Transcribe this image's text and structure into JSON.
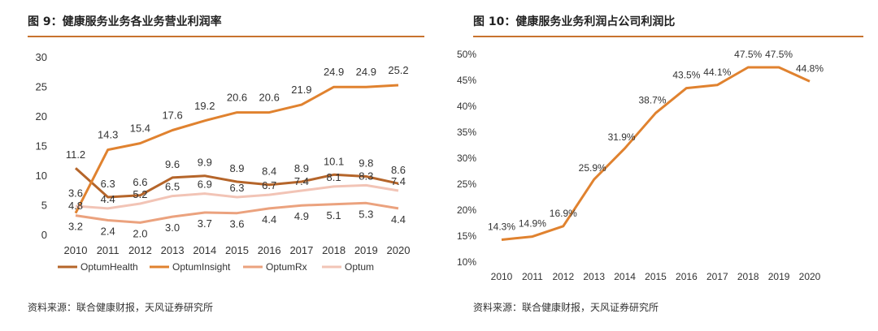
{
  "left": {
    "title": "图 9：健康服务业务各业务营业利润率",
    "source": "资料来源：联合健康财报，天风证券研究所",
    "chart_data": {
      "type": "line",
      "x": [
        "2010",
        "2011",
        "2012",
        "2013",
        "2014",
        "2015",
        "2016",
        "2017",
        "2018",
        "2019",
        "2020"
      ],
      "yticks": [
        0,
        5,
        10,
        15,
        20,
        25,
        30
      ],
      "ylim": [
        0,
        30
      ],
      "grid": false,
      "legend": "bottom",
      "series": [
        {
          "name": "OptumHealth",
          "color": "#b5652a",
          "values": [
            11.2,
            6.3,
            6.6,
            9.6,
            9.9,
            8.9,
            8.4,
            8.9,
            10.1,
            9.8,
            8.6
          ]
        },
        {
          "name": "OptumInsight",
          "color": "#e0822f",
          "values": [
            3.6,
            14.3,
            15.4,
            17.6,
            19.2,
            20.6,
            20.6,
            21.9,
            24.9,
            24.9,
            25.2
          ]
        },
        {
          "name": "OptumRx",
          "color": "#eba27e",
          "values": [
            3.2,
            2.4,
            2.0,
            3.0,
            3.7,
            3.6,
            4.4,
            4.9,
            5.1,
            5.3,
            4.4
          ]
        },
        {
          "name": "Optum",
          "color": "#f2c4b6",
          "values": [
            4.8,
            4.4,
            5.2,
            6.5,
            6.9,
            6.3,
            6.7,
            7.4,
            8.1,
            8.3,
            7.4
          ]
        }
      ]
    }
  },
  "right": {
    "title": "图 10：健康服务业务利润占公司利润比",
    "source": "资料来源：联合健康财报，天风证券研究所",
    "chart_data": {
      "type": "line",
      "x": [
        "2010",
        "2011",
        "2012",
        "2013",
        "2014",
        "2015",
        "2016",
        "2017",
        "2018",
        "2019",
        "2020"
      ],
      "yticks": [
        "10%",
        "15%",
        "20%",
        "25%",
        "30%",
        "35%",
        "40%",
        "45%",
        "50%"
      ],
      "ylim": [
        10,
        50
      ],
      "grid": false,
      "legend": "none",
      "series": [
        {
          "color": "#e0822f",
          "values": [
            14.3,
            14.9,
            16.9,
            25.9,
            31.9,
            38.7,
            43.5,
            44.1,
            47.5,
            47.5,
            44.8
          ],
          "labels": [
            "14.3%",
            "14.9%",
            "16.9%",
            "25.9%",
            "31.9%",
            "38.7%",
            "43.5%",
            "44.1%",
            "47.5%",
            "47.5%",
            "44.8%"
          ]
        }
      ]
    }
  }
}
